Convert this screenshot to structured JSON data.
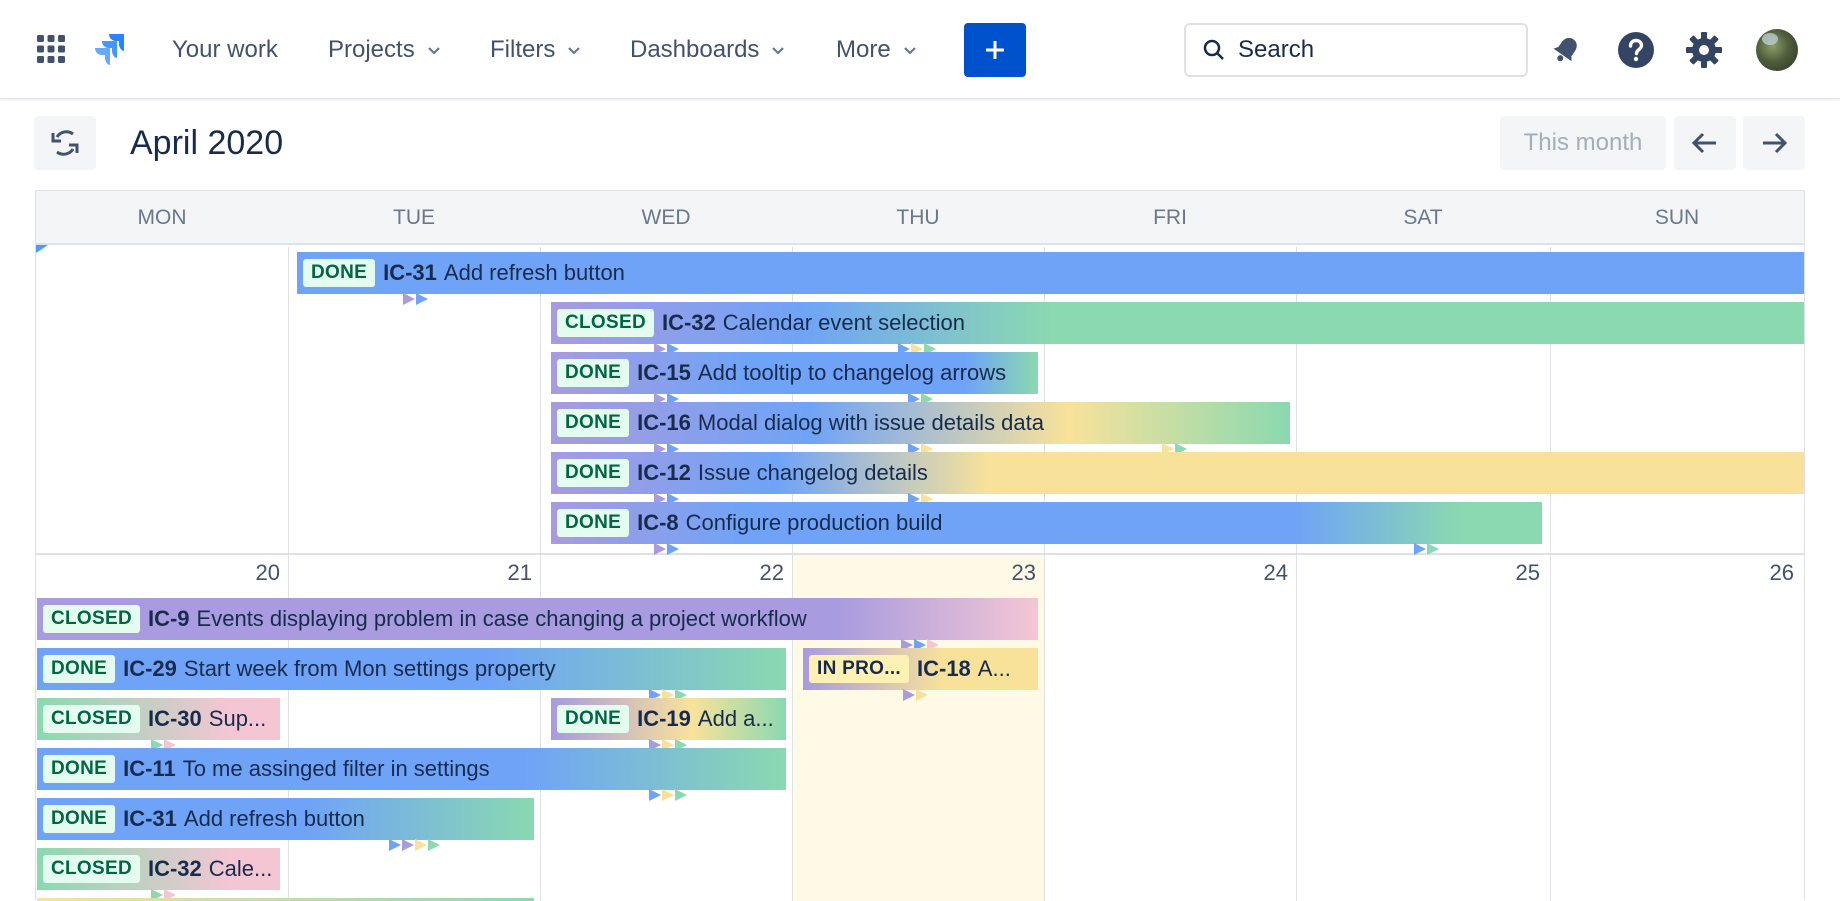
{
  "nav": {
    "your_work": "Your work",
    "projects": "Projects",
    "filters": "Filters",
    "dashboards": "Dashboards",
    "more": "More",
    "search_placeholder": "Search"
  },
  "toolbar": {
    "month_title": "April 2020",
    "this_month": "This month"
  },
  "calendar": {
    "weekdays": [
      "MON",
      "TUE",
      "WED",
      "THU",
      "FRI",
      "SAT",
      "SUN"
    ],
    "week2_days": [
      "20",
      "21",
      "22",
      "23",
      "24",
      "25",
      "26"
    ],
    "week1_events": [
      {
        "status": "DONE",
        "key": "IC-31",
        "summary": "Add refresh button"
      },
      {
        "status": "CLOSED",
        "key": "IC-32",
        "summary": "Calendar event selection"
      },
      {
        "status": "DONE",
        "key": "IC-15",
        "summary": "Add tooltip to changelog arrows"
      },
      {
        "status": "DONE",
        "key": "IC-16",
        "summary": "Modal dialog with issue details data"
      },
      {
        "status": "DONE",
        "key": "IC-12",
        "summary": "Issue changelog details"
      },
      {
        "status": "DONE",
        "key": "IC-8",
        "summary": "Configure production build"
      }
    ],
    "week2_events": [
      {
        "status": "CLOSED",
        "key": "IC-9",
        "summary": "Events displaying problem in case changing a project workflow"
      },
      {
        "status": "DONE",
        "key": "IC-29",
        "summary": "Start week from Mon settings property"
      },
      {
        "status": "IN PRO...",
        "key": "IC-18",
        "summary": "A..."
      },
      {
        "status": "CLOSED",
        "key": "IC-30",
        "summary": "Sup..."
      },
      {
        "status": "DONE",
        "key": "IC-19",
        "summary": "Add a..."
      },
      {
        "status": "DONE",
        "key": "IC-11",
        "summary": "To me assinged filter in settings"
      },
      {
        "status": "DONE",
        "key": "IC-31",
        "summary": "Add refresh button"
      },
      {
        "status": "CLOSED",
        "key": "IC-32",
        "summary": "Cale..."
      }
    ]
  },
  "colors": {
    "accent": "#0052cc",
    "blue": "#6fa3f7",
    "purple": "#a89bdf",
    "green": "#8ad9b0",
    "yellow": "#f8e29a",
    "pink": "#f4c6d4",
    "today": "#fffae6"
  },
  "icons": [
    "apps-grid-icon",
    "jira-logo-icon",
    "chevron-down-icon",
    "plus-icon",
    "search-icon",
    "bell-icon",
    "help-icon",
    "gear-icon",
    "refresh-icon",
    "arrow-left-icon",
    "arrow-right-icon"
  ]
}
